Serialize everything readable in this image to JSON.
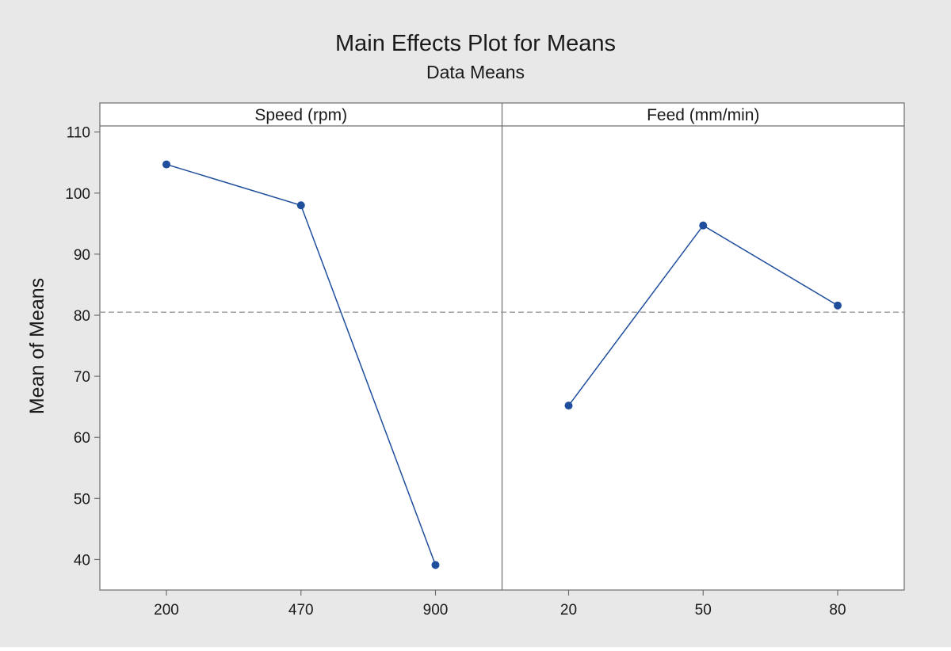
{
  "chart_data": {
    "type": "line",
    "title": "Main Effects Plot for Means",
    "subtitle": "Data Means",
    "ylabel": "Mean of Means",
    "ylim": [
      35,
      111
    ],
    "yticks": [
      40,
      50,
      60,
      70,
      80,
      90,
      100,
      110
    ],
    "reference_line": 80.5,
    "grid": false,
    "series_color": "#1f4e9c",
    "reference_color": "#9a9a9a",
    "background_color": "#e8e8e8",
    "panels": [
      {
        "name": "Speed (rpm)",
        "categories": [
          "200",
          "470",
          "900"
        ],
        "values": [
          104.7,
          98.0,
          39.1
        ]
      },
      {
        "name": "Feed (mm/min)",
        "categories": [
          "20",
          "50",
          "80"
        ],
        "values": [
          65.2,
          94.7,
          81.6
        ]
      }
    ]
  }
}
